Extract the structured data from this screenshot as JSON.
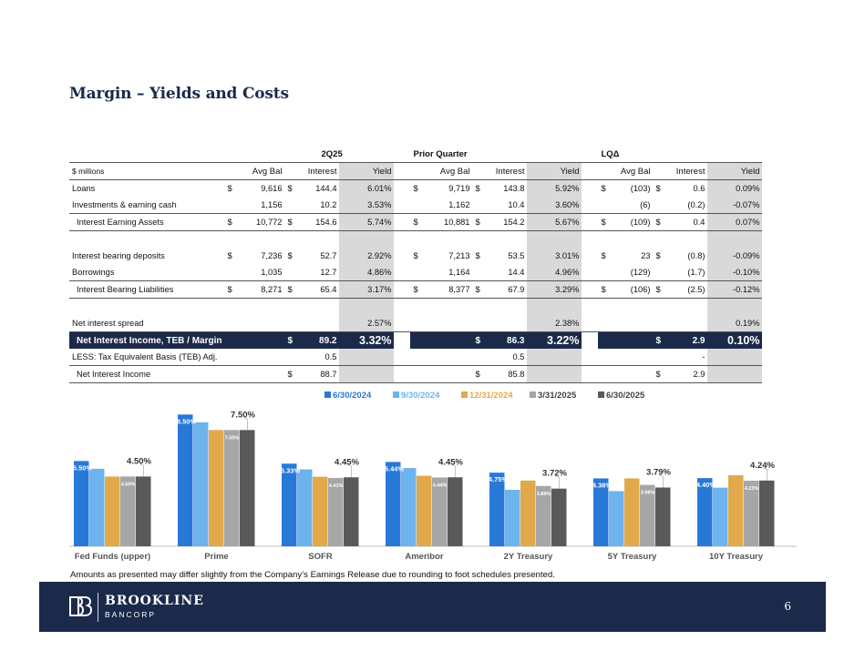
{
  "title": "Margin – Yields and Costs",
  "table": {
    "groups": [
      "2Q25",
      "Prior Quarter",
      "LQΔ"
    ],
    "units_label": "$ millions",
    "column_headers": [
      "Avg Bal",
      "Interest",
      "Yield",
      "Avg Bal",
      "Interest",
      "Yield",
      "Avg Bal",
      "Interest",
      "Yield"
    ],
    "rows": {
      "loans": {
        "label": "Loans",
        "q": [
          "$",
          "9,616",
          "$",
          "144.4",
          "6.01%"
        ],
        "p": [
          "$",
          "9,719",
          "$",
          "143.8",
          "5.92%"
        ],
        "d": [
          "$",
          "(103)",
          "$",
          "0.6",
          "0.09%"
        ]
      },
      "investments": {
        "label": "Investments & earning cash",
        "q": [
          "",
          "1,156",
          "",
          "10.2",
          "3.53%"
        ],
        "p": [
          "",
          "1,162",
          "",
          "10.4",
          "3.60%"
        ],
        "d": [
          "",
          "(6)",
          "",
          "(0.2)",
          "-0.07%"
        ]
      },
      "iea": {
        "label": "Interest Earning Assets",
        "q": [
          "$",
          "10,772",
          "$",
          "154.6",
          "5.74%"
        ],
        "p": [
          "$",
          "10,881",
          "$",
          "154.2",
          "5.67%"
        ],
        "d": [
          "$",
          "(109)",
          "$",
          "0.4",
          "0.07%"
        ]
      },
      "deposits": {
        "label": "Interest bearing deposits",
        "q": [
          "$",
          "7,236",
          "$",
          "52.7",
          "2.92%"
        ],
        "p": [
          "$",
          "7,213",
          "$",
          "53.5",
          "3.01%"
        ],
        "d": [
          "$",
          "23",
          "$",
          "(0.8)",
          "-0.09%"
        ]
      },
      "borrowings": {
        "label": "Borrowings",
        "q": [
          "",
          "1,035",
          "",
          "12.7",
          "4.86%"
        ],
        "p": [
          "",
          "1,164",
          "",
          "14.4",
          "4.96%"
        ],
        "d": [
          "",
          "(129)",
          "",
          "(1.7)",
          "-0.10%"
        ]
      },
      "ibl": {
        "label": "Interest Bearing Liabilities",
        "q": [
          "$",
          "8,271",
          "$",
          "65.4",
          "3.17%"
        ],
        "p": [
          "$",
          "8,377",
          "$",
          "67.9",
          "3.29%"
        ],
        "d": [
          "$",
          "(106)",
          "$",
          "(2.5)",
          "-0.12%"
        ]
      },
      "spread": {
        "label": "Net interest spread",
        "q": "2.57%",
        "p": "2.38%",
        "d": "0.19%"
      },
      "nim": {
        "label": "Net Interest Income, TEB / Margin",
        "q": [
          "$",
          "89.2",
          "3.32%"
        ],
        "p": [
          "$",
          "86.3",
          "3.22%"
        ],
        "d": [
          "$",
          "2.9",
          "0.10%"
        ]
      },
      "teb": {
        "label": "LESS: Tax Equivalent Basis (TEB) Adj.",
        "q": "0.5",
        "p": "0.5",
        "d": "-"
      },
      "nii": {
        "label": "Net Interest Income",
        "q": [
          "$",
          "88.7"
        ],
        "p": [
          "$",
          "85.8"
        ],
        "d": [
          "$",
          "2.9"
        ]
      }
    }
  },
  "chart_data": {
    "type": "bar",
    "categories": [
      "Fed Funds (upper)",
      "Prime",
      "SOFR",
      "Ameribor",
      "2Y Treasury",
      "5Y Treasury",
      "10Y Treasury"
    ],
    "series": [
      {
        "name": "6/30/2024",
        "color": "#2878d8",
        "values": [
          5.5,
          8.5,
          5.33,
          5.44,
          4.75,
          4.38,
          4.4
        ]
      },
      {
        "name": "9/30/2024",
        "color": "#6db3ee",
        "values": [
          5.0,
          8.0,
          4.96,
          5.05,
          3.64,
          3.56,
          3.78
        ]
      },
      {
        "name": "12/31/2024",
        "color": "#e2a94a",
        "values": [
          4.5,
          7.5,
          4.49,
          4.55,
          4.24,
          4.38,
          4.58
        ]
      },
      {
        "name": "3/31/2025",
        "color": "#a6a6a6",
        "values": [
          4.5,
          7.5,
          4.41,
          4.44,
          3.89,
          3.96,
          4.23
        ]
      },
      {
        "name": "6/30/2025",
        "color": "#595959",
        "values": [
          4.5,
          7.5,
          4.45,
          4.45,
          3.72,
          3.79,
          4.24
        ]
      }
    ],
    "first_labels": [
      "5.50%",
      "8.50%",
      "5.33%",
      "5.44%",
      "4.75%",
      "4.38%",
      "4.40%"
    ],
    "mar_labels": [
      "4.50%",
      "7.50%",
      "4.41%",
      "4.44%",
      "3.89%",
      "3.96%",
      "4.23%"
    ],
    "last_labels": [
      "4.50%",
      "7.50%",
      "4.45%",
      "4.45%",
      "3.72%",
      "3.79%",
      "4.24%"
    ],
    "ylim": [
      0,
      9.4
    ]
  },
  "note": "Amounts as presented may differ slightly from the Company’s Earnings Release due to rounding to foot schedules presented.",
  "footer": {
    "brand": "BROOKLINE",
    "brand_sub": "BANCORP",
    "page": "6"
  }
}
